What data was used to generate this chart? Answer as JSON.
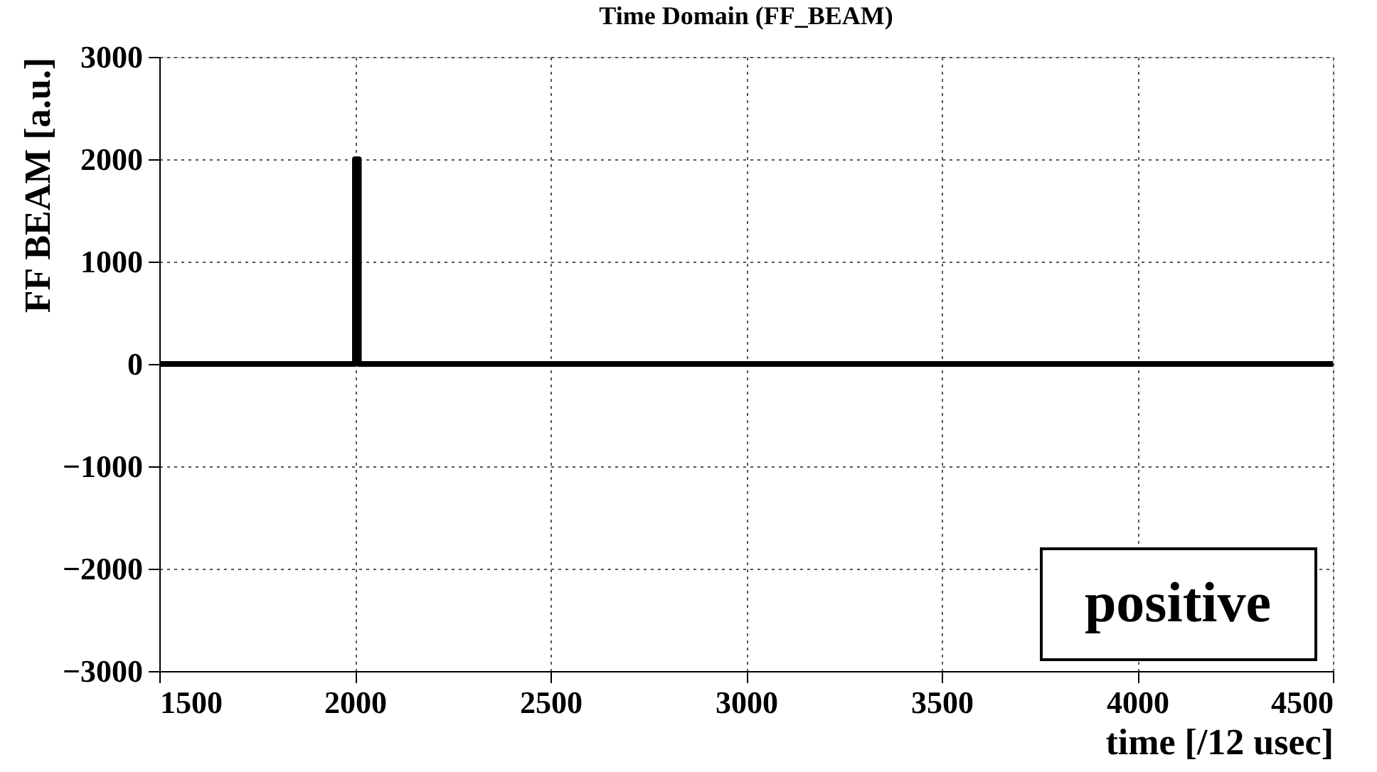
{
  "chart_data": {
    "type": "line",
    "title": "Time Domain (FF_BEAM)",
    "xlabel": "time [/12 usec]",
    "ylabel": "FF BEAM [a.u.]",
    "x": [
      1500,
      2000,
      2000,
      2010,
      2010,
      4500
    ],
    "series": [
      {
        "color": "#000000",
        "values": [
          0,
          0,
          2000,
          2000,
          0,
          0
        ]
      }
    ],
    "xlim": [
      1500,
      4500
    ],
    "xticks": [
      1500,
      2000,
      2500,
      3000,
      3500,
      4000,
      4500
    ],
    "ylim": [
      -3000,
      3000
    ],
    "yticks": [
      -3000,
      -2000,
      -1000,
      0,
      1000,
      2000,
      3000
    ],
    "grid": true,
    "marker": "none",
    "line_style": "solid",
    "legend": false,
    "annotations": [
      "positive"
    ]
  }
}
